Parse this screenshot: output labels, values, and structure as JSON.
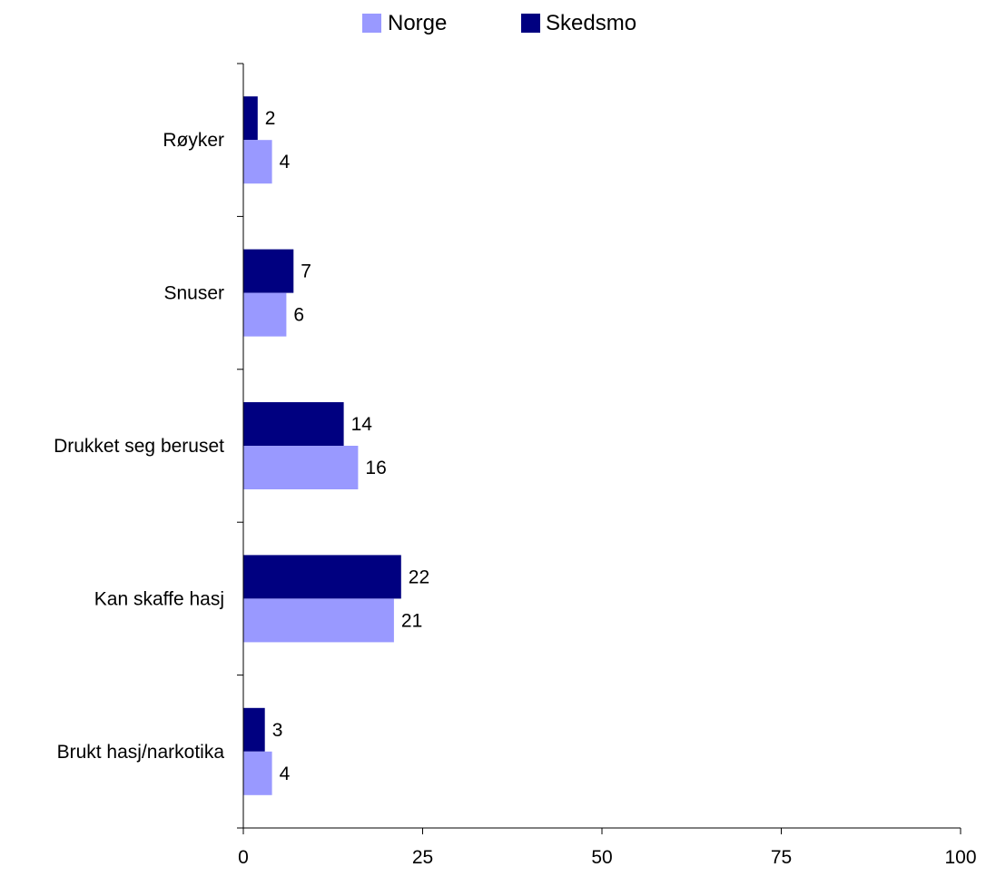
{
  "chart_data": {
    "type": "bar",
    "orientation": "horizontal",
    "categories": [
      "Røyker",
      "Snuser",
      "Drukket seg beruset",
      "Kan skaffe hasj",
      "Brukt hasj/narkotika"
    ],
    "series": [
      {
        "name": "Skedsmo",
        "color": "#000080",
        "values": [
          2,
          7,
          14,
          22,
          3
        ]
      },
      {
        "name": "Norge",
        "color": "#9999ff",
        "values": [
          4,
          6,
          16,
          21,
          4
        ]
      }
    ],
    "legend": {
      "position": "top",
      "order": [
        "Norge",
        "Skedsmo"
      ]
    },
    "xlim": [
      0,
      100
    ],
    "xticks": [
      0,
      25,
      50,
      75,
      100
    ],
    "grid": false,
    "data_labels": true
  }
}
